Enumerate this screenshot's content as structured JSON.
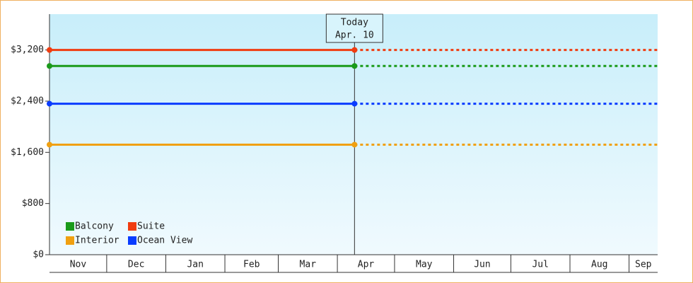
{
  "chart_data": {
    "type": "line",
    "xlim": [
      0,
      319
    ],
    "xticks": [
      {
        "value": 0,
        "label": "Nov"
      },
      {
        "value": 30,
        "label": "Dec"
      },
      {
        "value": 61,
        "label": "Jan"
      },
      {
        "value": 92,
        "label": "Feb"
      },
      {
        "value": 120,
        "label": "Mar"
      },
      {
        "value": 151,
        "label": "Apr"
      },
      {
        "value": 181,
        "label": "May"
      },
      {
        "value": 212,
        "label": "Jun"
      },
      {
        "value": 242,
        "label": "Jul"
      },
      {
        "value": 273,
        "label": "Aug"
      },
      {
        "value": 304,
        "label": "Sep"
      }
    ],
    "ylim": [
      0,
      3760
    ],
    "yticks": [
      {
        "value": 0,
        "label": "$0"
      },
      {
        "value": 800,
        "label": "$800"
      },
      {
        "value": 1600,
        "label": "$1,600"
      },
      {
        "value": 2400,
        "label": "$2,400"
      },
      {
        "value": 3200,
        "label": "$3,200"
      }
    ],
    "annotation": {
      "x": 160,
      "lines": [
        "Today",
        "Apr. 10"
      ]
    },
    "series": [
      {
        "name": "Balcony",
        "color": "#1a9a1a",
        "x": [
          0,
          160
        ],
        "values": [
          2950,
          2950
        ]
      },
      {
        "name": "Suite",
        "color": "#f03c10",
        "x": [
          0,
          160
        ],
        "values": [
          3200,
          3200
        ]
      },
      {
        "name": "Interior",
        "color": "#f0a010",
        "x": [
          0,
          160
        ],
        "values": [
          1720,
          1720
        ]
      },
      {
        "name": "Ocean View",
        "color": "#0a3cff",
        "x": [
          0,
          160
        ],
        "values": [
          2360,
          2360
        ]
      }
    ],
    "legend": "lower left"
  }
}
